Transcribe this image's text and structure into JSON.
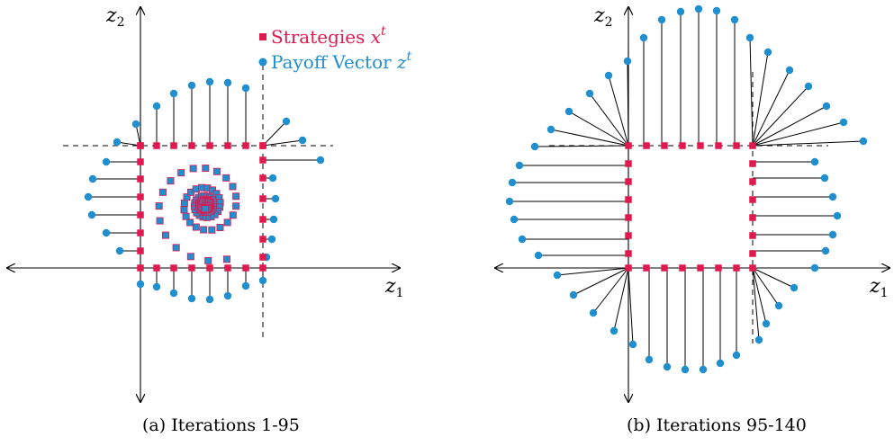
{
  "colors": {
    "strategy": "#e0194f",
    "payoff": "#1f8fcf",
    "axis": "#000000"
  },
  "legend": {
    "strategies": "Strategies",
    "strategies_sym": "x",
    "payoff": "Payoff Vector",
    "payoff_sym": "z",
    "sup": "t"
  },
  "panels": [
    {
      "axis_x_label": "z",
      "axis_x_sub": "1",
      "axis_y_label": "z",
      "axis_y_sub": "2",
      "caption": "(a) Iterations 1-95"
    },
    {
      "axis_x_label": "z",
      "axis_x_sub": "1",
      "axis_y_label": "z",
      "axis_y_sub": "2",
      "caption": "(b) Iterations 95-140"
    }
  ]
}
